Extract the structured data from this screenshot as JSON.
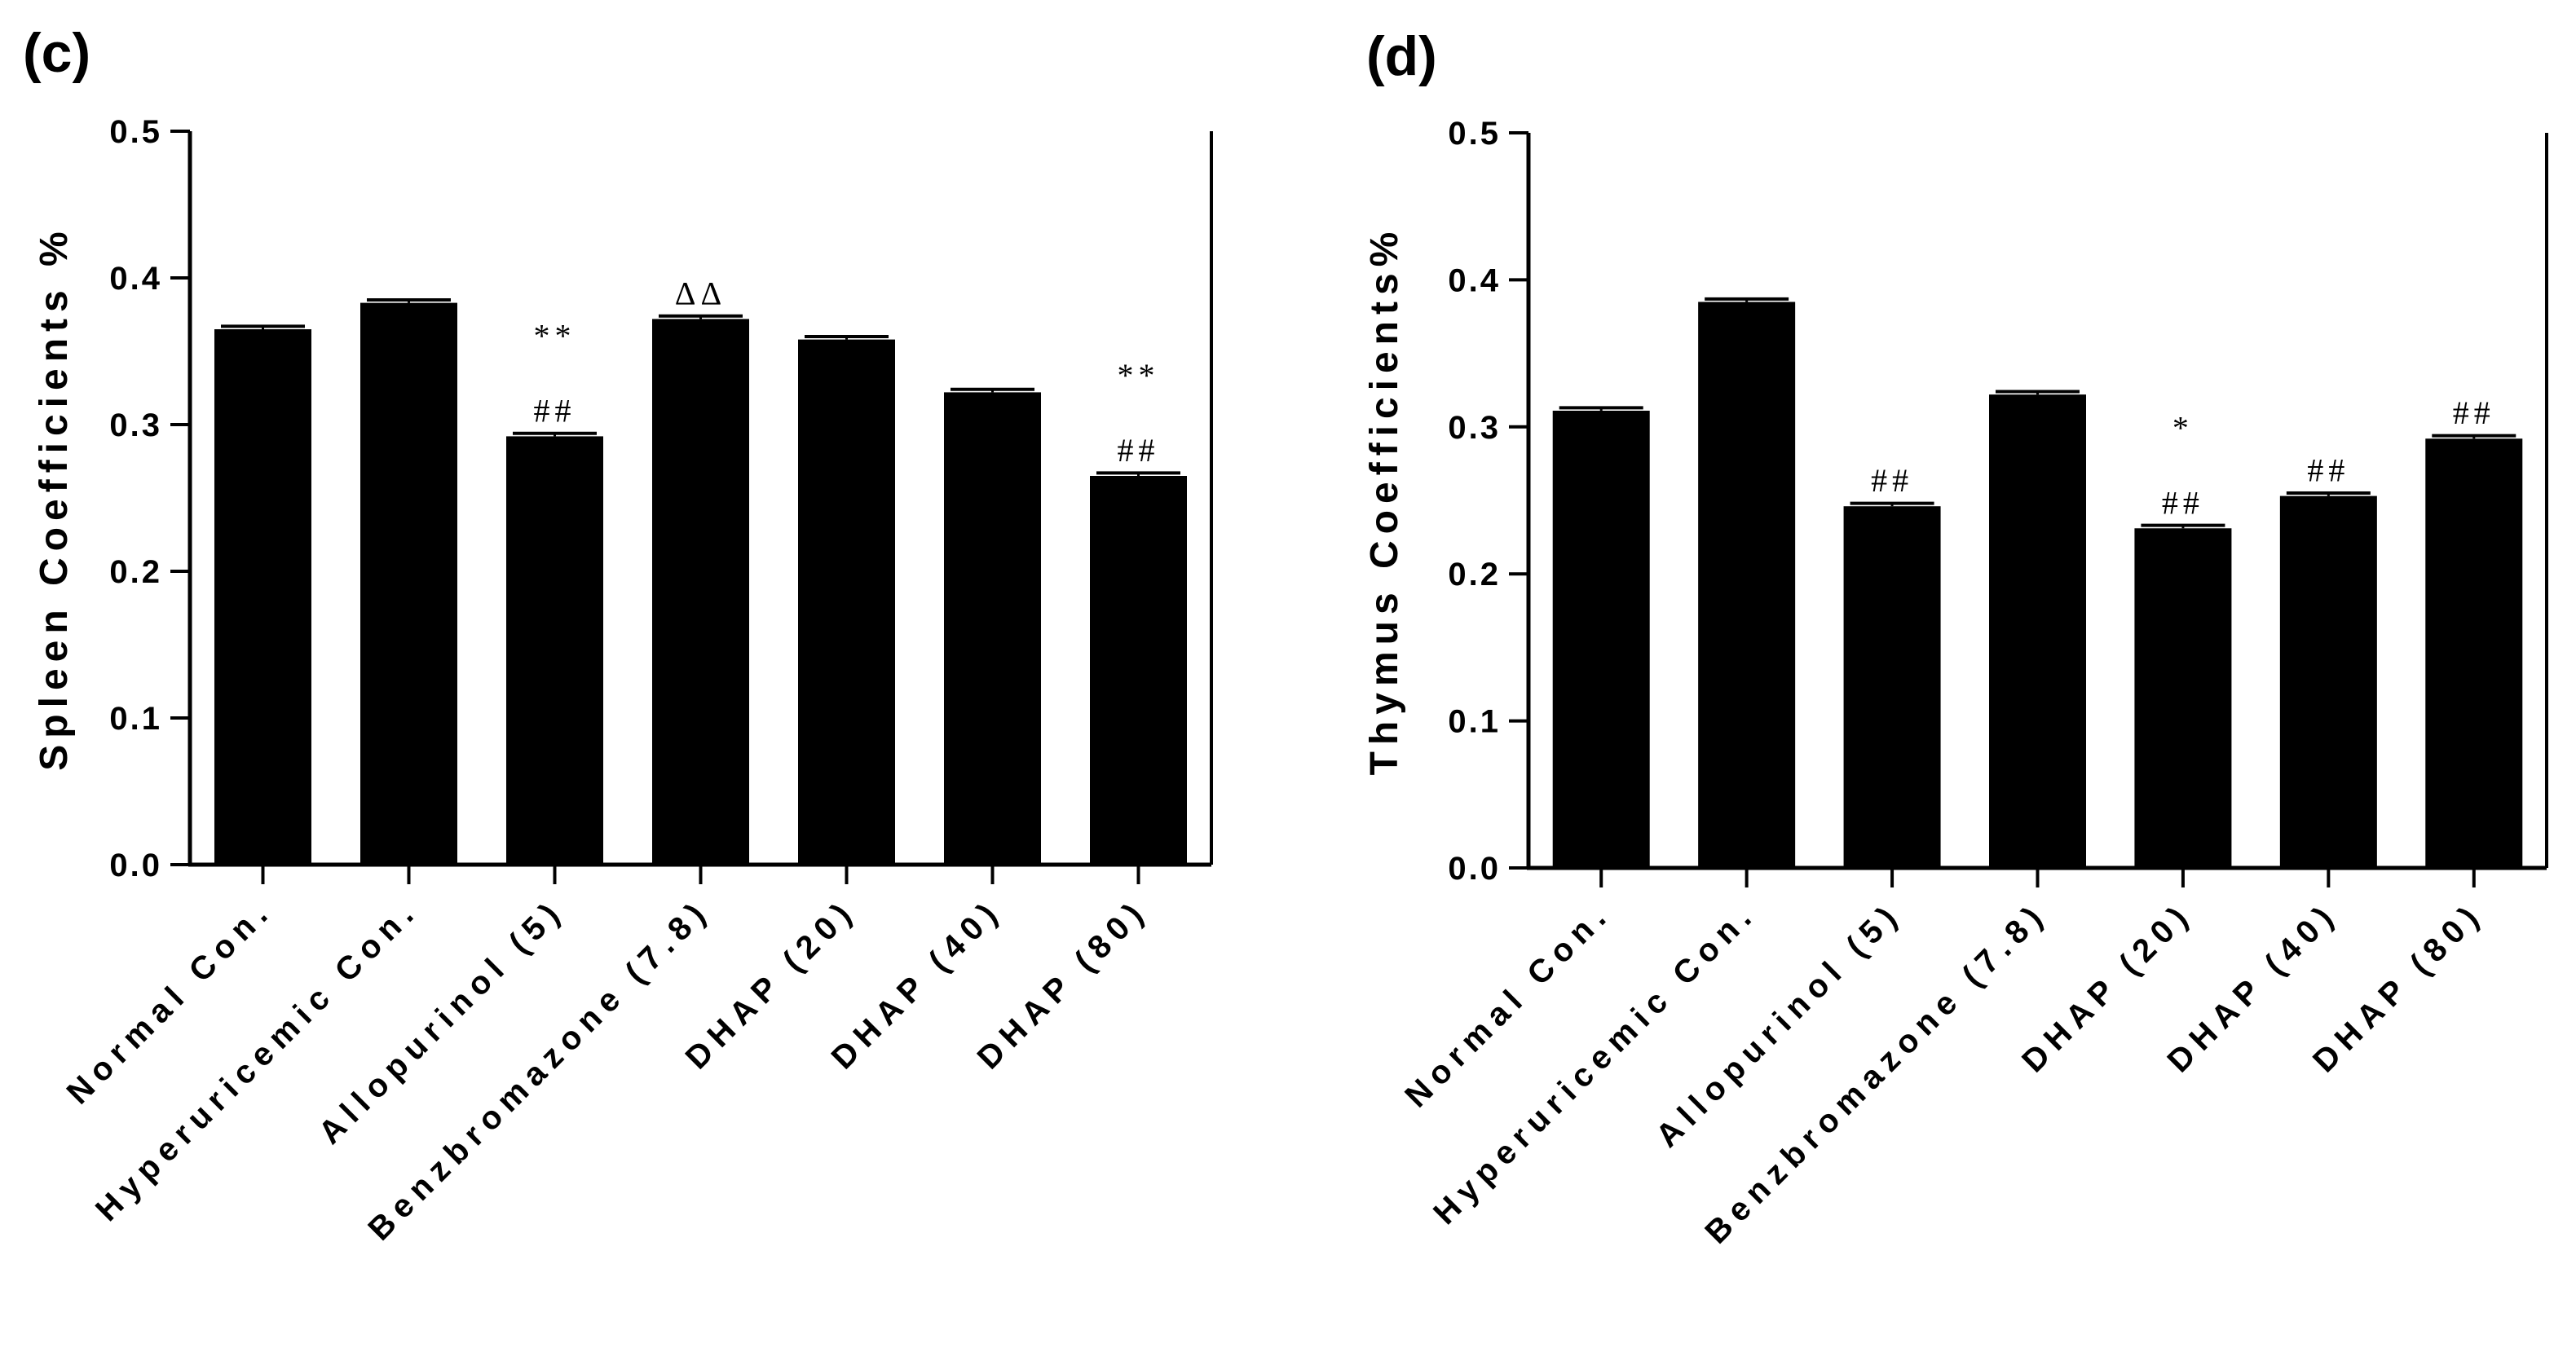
{
  "chart_data": [
    {
      "type": "bar",
      "panel_label": "(c)",
      "title": "",
      "xlabel": "",
      "ylabel": "Spleen Coefficients %",
      "ylim": [
        0,
        0.5
      ],
      "yticks": [
        "0.0",
        "0.1",
        "0.2",
        "0.3",
        "0.4",
        "0.5"
      ],
      "categories": [
        "Normal Con.",
        "Hyperuricemic Con.",
        "Allopurinol (5)",
        "Benzbromazone (7.8)",
        "DHAP (20)",
        "DHAP (40)",
        "DHAP (80)"
      ],
      "values": [
        0.365,
        0.383,
        0.292,
        0.372,
        0.358,
        0.322,
        0.265
      ],
      "errors": [
        0.002,
        0.002,
        0.002,
        0.002,
        0.002,
        0.002,
        0.002
      ],
      "annotations": [
        {
          "category": "Allopurinol (5)",
          "lines": [
            "**",
            "##"
          ]
        },
        {
          "category": "Benzbromazone (7.8)",
          "lines": [
            "ΔΔ"
          ]
        },
        {
          "category": "DHAP (80)",
          "lines": [
            "**",
            "##"
          ]
        }
      ],
      "bar_color": "#000000"
    },
    {
      "type": "bar",
      "panel_label": "(d)",
      "title": "",
      "xlabel": "",
      "ylabel": "Thymus Coefficients%",
      "ylim": [
        0,
        0.5
      ],
      "yticks": [
        "0.0",
        "0.1",
        "0.2",
        "0.3",
        "0.4",
        "0.5"
      ],
      "categories": [
        "Normal Con.",
        "Hyperuricemic Con.",
        "Allopurinol (5)",
        "Benzbromazone (7.8)",
        "DHAP (20)",
        "DHAP (40)",
        "DHAP (80)"
      ],
      "values": [
        0.311,
        0.385,
        0.246,
        0.322,
        0.231,
        0.253,
        0.292
      ],
      "errors": [
        0.002,
        0.002,
        0.002,
        0.002,
        0.002,
        0.002,
        0.002
      ],
      "annotations": [
        {
          "category": "Allopurinol (5)",
          "lines": [
            "##"
          ]
        },
        {
          "category": "DHAP (20)",
          "lines": [
            "*",
            "##"
          ]
        },
        {
          "category": "DHAP (40)",
          "lines": [
            "##"
          ]
        },
        {
          "category": "DHAP (80)",
          "lines": [
            "##"
          ]
        }
      ],
      "bar_color": "#000000"
    }
  ]
}
